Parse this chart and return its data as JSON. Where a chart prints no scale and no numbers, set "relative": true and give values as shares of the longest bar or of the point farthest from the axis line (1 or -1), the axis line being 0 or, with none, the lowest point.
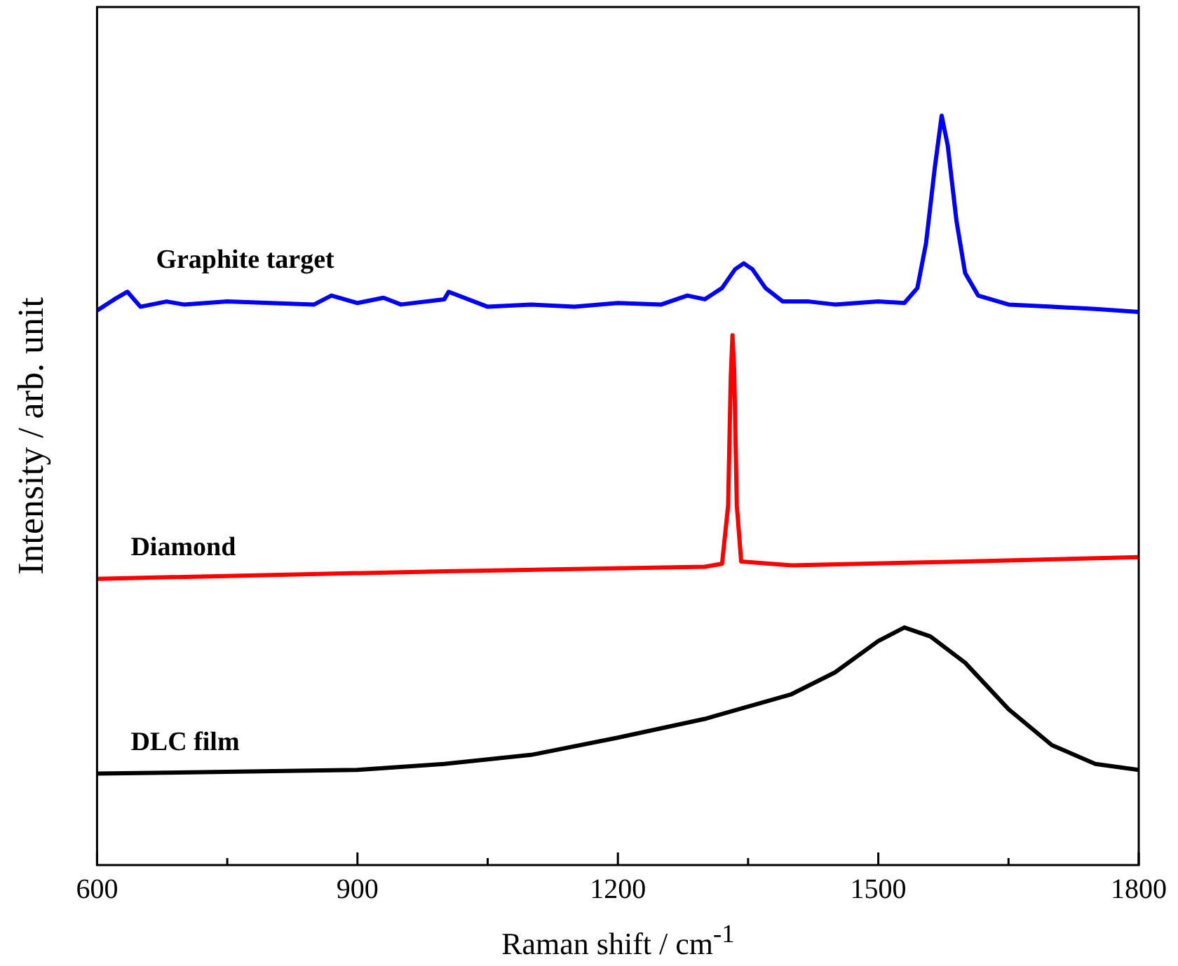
{
  "chart_data": {
    "type": "line",
    "relative": true,
    "xlabel": "Raman shift / cm$^{-1}$",
    "ylabel": "Intensity / arb. unit",
    "xlim": [
      600,
      1800
    ],
    "xticks": [
      600,
      {
        "value": 750,
        "label": null
      },
      900,
      {
        "value": 1050,
        "label": null
      },
      1200,
      {
        "value": 1350,
        "label": null
      },
      1500,
      {
        "value": 1650,
        "label": null
      },
      1800
    ],
    "grid": false,
    "legend": false,
    "marker": "none",
    "line_style": "solid",
    "series": [
      {
        "name": "Graphite target",
        "color": "#0000ff",
        "x": [
          600,
          620,
          635,
          650,
          680,
          700,
          750,
          800,
          850,
          870,
          900,
          930,
          950,
          1000,
          1005,
          1050,
          1100,
          1150,
          1200,
          1250,
          1280,
          1300,
          1320,
          1335,
          1345,
          1355,
          1370,
          1390,
          1420,
          1450,
          1500,
          1530,
          1545,
          1555,
          1565,
          1573,
          1580,
          1590,
          1600,
          1615,
          1650,
          1700,
          1750,
          1800
        ],
        "values": [
          0.74,
          0.755,
          0.765,
          0.745,
          0.752,
          0.748,
          0.752,
          0.75,
          0.748,
          0.76,
          0.75,
          0.757,
          0.748,
          0.755,
          0.765,
          0.745,
          0.748,
          0.745,
          0.75,
          0.748,
          0.76,
          0.755,
          0.77,
          0.795,
          0.803,
          0.795,
          0.77,
          0.752,
          0.752,
          0.748,
          0.752,
          0.75,
          0.77,
          0.83,
          0.93,
          1.0,
          0.96,
          0.86,
          0.79,
          0.76,
          0.748,
          0.745,
          0.742,
          0.738
        ]
      },
      {
        "name": "Diamond",
        "color": "#ff0000",
        "x": [
          600,
          1000,
          1300,
          1320,
          1327,
          1330,
          1332,
          1334,
          1337,
          1342,
          1400,
          1600,
          1800
        ],
        "values": [
          0.382,
          0.392,
          0.398,
          0.402,
          0.48,
          0.65,
          0.707,
          0.66,
          0.48,
          0.405,
          0.4,
          0.405,
          0.411
        ]
      },
      {
        "name": "DLC film",
        "color": "#000000",
        "x": [
          600,
          900,
          1000,
          1100,
          1200,
          1300,
          1400,
          1450,
          1500,
          1530,
          1560,
          1600,
          1650,
          1700,
          1750,
          1800
        ],
        "values": [
          0.122,
          0.127,
          0.135,
          0.147,
          0.17,
          0.195,
          0.228,
          0.257,
          0.299,
          0.317,
          0.305,
          0.27,
          0.208,
          0.16,
          0.135,
          0.127
        ]
      }
    ]
  }
}
